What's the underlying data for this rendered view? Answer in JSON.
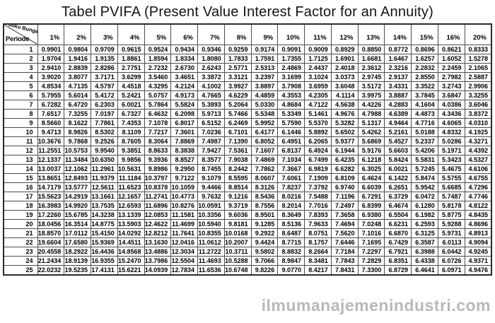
{
  "title": "Tabel PVIFA (Present Value Interest Factor for an Annuity)",
  "watermark": "ilmumanajemenindustri.com",
  "chart_data": {
    "type": "table",
    "title": "Tabel PVIFA (Present Value Interest Factor for an Annuity)",
    "corner_top": "Suku Bunga (%)",
    "corner_bottom": "Periode",
    "columns": [
      "1%",
      "2%",
      "3%",
      "4%",
      "5%",
      "6%",
      "7%",
      "8%",
      "9%",
      "10%",
      "11%",
      "12%",
      "13%",
      "14%",
      "15%",
      "16%",
      "20%"
    ],
    "rows": [
      {
        "period": "1",
        "values": [
          "0.9901",
          "0.9804",
          "0.9709",
          "0.9615",
          "0.9524",
          "0.9434",
          "0.9346",
          "0.9259",
          "0.9174",
          "0.9091",
          "0.9009",
          "0.8929",
          "0.8850",
          "0.8772",
          "0.8696",
          "0.8621",
          "0.8333"
        ]
      },
      {
        "period": "2",
        "values": [
          "1.9704",
          "1.9416",
          "1.9135",
          "1.8861",
          "1.8594",
          "1.8334",
          "1.8080",
          "1.7833",
          "1.7591",
          "1.7355",
          "1.7125",
          "1.6901",
          "1.6681",
          "1.6467",
          "1.6257",
          "1.6052",
          "1.5278"
        ]
      },
      {
        "period": "3",
        "values": [
          "2.9410",
          "2.8839",
          "2.8286",
          "2.7751",
          "2.7232",
          "2.6730",
          "2.6243",
          "2.5771",
          "2.5313",
          "2.4869",
          "2.4437",
          "2.4018",
          "2.3612",
          "2.3216",
          "2.2832",
          "2.2459",
          "2.1065"
        ]
      },
      {
        "period": "4",
        "values": [
          "3.9020",
          "3.8077",
          "3.7171",
          "3.6299",
          "3.5460",
          "3.4651",
          "3.3872",
          "3.3121",
          "3.2397",
          "3.1699",
          "3.1024",
          "3.0373",
          "2.9745",
          "2.9137",
          "2.8550",
          "2.7982",
          "2.5887"
        ]
      },
      {
        "period": "5",
        "values": [
          "4.8534",
          "4.7135",
          "4.5797",
          "4.4518",
          "4.3295",
          "4.2124",
          "4.1002",
          "3.9927",
          "3.8897",
          "3.7908",
          "3.6959",
          "3.6048",
          "3.5172",
          "3.4331",
          "3.3522",
          "3.2743",
          "2.9906"
        ]
      },
      {
        "period": "6",
        "values": [
          "5.7955",
          "5.6014",
          "5.4172",
          "5.2421",
          "5.0757",
          "4.9173",
          "4.7665",
          "4.6229",
          "4.4859",
          "4.3553",
          "4.2305",
          "4.1114",
          "3.9975",
          "3.8887",
          "3.7845",
          "3.6847",
          "3.3255"
        ]
      },
      {
        "period": "7",
        "values": [
          "6.7282",
          "6.4720",
          "6.2303",
          "6.0021",
          "5.7864",
          "5.5824",
          "5.3893",
          "5.2064",
          "5.0330",
          "4.8684",
          "4.7122",
          "4.5638",
          "4.4226",
          "4.2883",
          "4.1604",
          "4.0386",
          "3.6046"
        ]
      },
      {
        "period": "8",
        "values": [
          "7.6517",
          "7.3255",
          "7.0197",
          "6.7327",
          "6.4632",
          "6.2098",
          "5.9713",
          "5.7466",
          "5.5348",
          "5.3349",
          "5.1461",
          "4.9676",
          "4.7988",
          "4.6389",
          "4.4873",
          "4.3436",
          "3.8372"
        ]
      },
      {
        "period": "9",
        "values": [
          "8.5660",
          "8.1622",
          "7.7861",
          "7.4353",
          "7.1078",
          "6.8017",
          "6.5152",
          "6.2469",
          "5.9952",
          "5.7590",
          "5.5370",
          "5.3282",
          "5.1317",
          "4.9464",
          "4.7716",
          "4.6065",
          "4.0310"
        ]
      },
      {
        "period": "10",
        "values": [
          "9.4713",
          "8.9826",
          "8.5302",
          "8.1109",
          "7.7217",
          "7.3601",
          "7.0236",
          "6.7101",
          "6.4177",
          "6.1446",
          "5.8892",
          "5.6502",
          "5.4262",
          "5.2161",
          "5.0188",
          "4.8332",
          "4.1925"
        ]
      },
      {
        "period": "11",
        "values": [
          "10.3676",
          "9.7868",
          "9.2526",
          "8.7605",
          "8.3064",
          "7.8869",
          "7.4987",
          "7.1390",
          "6.8052",
          "6.4951",
          "6.2065",
          "5.9377",
          "5.6869",
          "5.4527",
          "5.2337",
          "5.0286",
          "4.3271"
        ]
      },
      {
        "period": "12",
        "values": [
          "11.2551",
          "10.5753",
          "9.9540",
          "9.3851",
          "8.8633",
          "8.3838",
          "7.9427",
          "7.5361",
          "7.1607",
          "6.8137",
          "6.4924",
          "6.1944",
          "5.9176",
          "5.6603",
          "5.4206",
          "5.1971",
          "4.4392"
        ]
      },
      {
        "period": "13",
        "values": [
          "12.1337",
          "11.3484",
          "10.6350",
          "9.9856",
          "9.3936",
          "8.8527",
          "8.3577",
          "7.9038",
          "7.4869",
          "7.1034",
          "6.7499",
          "6.4235",
          "6.1218",
          "5.8424",
          "5.5831",
          "5.3423",
          "4.5327"
        ]
      },
      {
        "period": "14",
        "values": [
          "13.0037",
          "12.1062",
          "11.2961",
          "10.5631",
          "9.8986",
          "9.2950",
          "8.7455",
          "8.2442",
          "7.7862",
          "7.3667",
          "6.9819",
          "6.6282",
          "6.3025",
          "6.0021",
          "5.7245",
          "5.4675",
          "4.6106"
        ]
      },
      {
        "period": "15",
        "values": [
          "13.8651",
          "12.8493",
          "11.9379",
          "11.1184",
          "10.3797",
          "9.7122",
          "9.1079",
          "8.5595",
          "8.0607",
          "7.6061",
          "7.1909",
          "6.8109",
          "6.4624",
          "6.1422",
          "5.8474",
          "5.5755",
          "4.6755"
        ]
      },
      {
        "period": "16",
        "values": [
          "14.7179",
          "13.5777",
          "12.5611",
          "11.6523",
          "10.8378",
          "10.1059",
          "9.4466",
          "8.8514",
          "8.3126",
          "7.8237",
          "7.3792",
          "6.9740",
          "6.6039",
          "6.2651",
          "5.9542",
          "5.6685",
          "4.7296"
        ]
      },
      {
        "period": "17",
        "values": [
          "15.5623",
          "14.2919",
          "13.1661",
          "12.1657",
          "11.2741",
          "10.4773",
          "9.7632",
          "9.1216",
          "8.5436",
          "8.0216",
          "7.5488",
          "7.1196",
          "6.7291",
          "6.3729",
          "6.0472",
          "5.7487",
          "4.7746"
        ]
      },
      {
        "period": "18",
        "values": [
          "16.3983",
          "14.9920",
          "13.7535",
          "12.6593",
          "11.6896",
          "10.8276",
          "10.0591",
          "9.3719",
          "8.7556",
          "8.2014",
          "7.7016",
          "7.2497",
          "6.8399",
          "6.4674",
          "6.1280",
          "5.8178",
          "4.8122"
        ]
      },
      {
        "period": "19",
        "values": [
          "17.2260",
          "15.6785",
          "14.3238",
          "13.1339",
          "12.0853",
          "11.1581",
          "10.3356",
          "9.6036",
          "8.9501",
          "8.3649",
          "7.8393",
          "7.3658",
          "6.9380",
          "6.5504",
          "6.1982",
          "5.8775",
          "4.8435"
        ]
      },
      {
        "period": "20",
        "values": [
          "18.0456",
          "16.3514",
          "14.8775",
          "13.5903",
          "12.4622",
          "11.4699",
          "10.5940",
          "9.8181",
          "9.1285",
          "8.5136",
          "7.9633",
          "7.4694",
          "7.0248",
          "6.6231",
          "6.2593",
          "5.9288",
          "4.8696"
        ]
      },
      {
        "period": "21",
        "values": [
          "18.8570",
          "17.0112",
          "15.4150",
          "14.0292",
          "12.8212",
          "11.7641",
          "10.8355",
          "10.0168",
          "9.2922",
          "8.6487",
          "8.0751",
          "7.5620",
          "7.1016",
          "6.6870",
          "6.3125",
          "5.9731",
          "4.8913"
        ]
      },
      {
        "period": "22",
        "values": [
          "19.6604",
          "17.6580",
          "15.9369",
          "14.4511",
          "13.1630",
          "12.0416",
          "11.0612",
          "10.2007",
          "9.4424",
          "8.7715",
          "8.1757",
          "7.6446",
          "7.1695",
          "6.7429",
          "6.3587",
          "6.0113",
          "4.9094"
        ]
      },
      {
        "period": "23",
        "values": [
          "20.4558",
          "18.2922",
          "16.4436",
          "14.8568",
          "13.4886",
          "12.3034",
          "11.2722",
          "10.3711",
          "9.5802",
          "8.8832",
          "8.2664",
          "7.7184",
          "7.2297",
          "6.7921",
          "6.3988",
          "6.0442",
          "4.9245"
        ]
      },
      {
        "period": "24",
        "values": [
          "21.2434",
          "18.9139",
          "16.9355",
          "15.2470",
          "13.7986",
          "12.5504",
          "11.4693",
          "10.5288",
          "9.7066",
          "8.9847",
          "8.3481",
          "7.7843",
          "7.2829",
          "6.8351",
          "6.4338",
          "6.0726",
          "4.9371"
        ]
      },
      {
        "period": "25",
        "values": [
          "22.0232",
          "19.5235",
          "17.4131",
          "15.6221",
          "14.0939",
          "12.7834",
          "11.6536",
          "10.6748",
          "9.8226",
          "9.0770",
          "8.4217",
          "7.8431",
          "7.3300",
          "6.8729",
          "6.4641",
          "6.0971",
          "4.9476"
        ]
      }
    ]
  }
}
